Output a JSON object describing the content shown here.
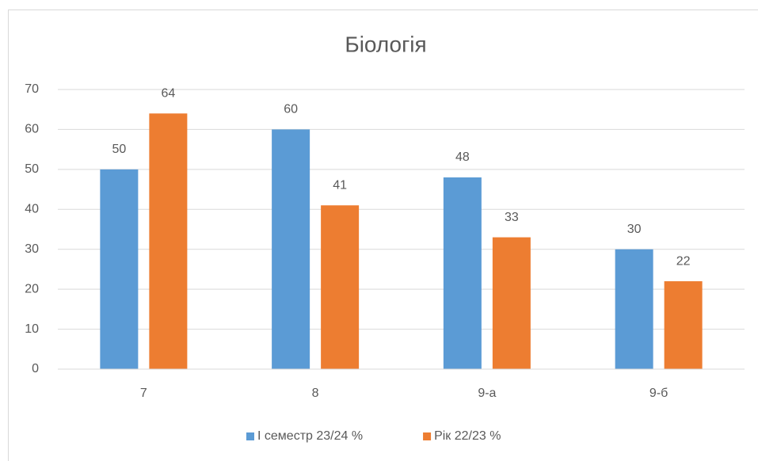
{
  "chart_data": {
    "type": "bar",
    "title": "Біологія",
    "categories": [
      "7",
      "8",
      "9-а",
      "9-б"
    ],
    "series": [
      {
        "name": "І семестр 23/24 %",
        "color": "#5b9bd5",
        "values": [
          50,
          60,
          48,
          30
        ]
      },
      {
        "name": "Рік 22/23 %",
        "color": "#ed7d31",
        "values": [
          64,
          41,
          33,
          22
        ]
      }
    ],
    "ylim": [
      0,
      70
    ],
    "yticks": [
      0,
      10,
      20,
      30,
      40,
      50,
      60,
      70
    ],
    "grid": true,
    "legend": "bottom"
  }
}
